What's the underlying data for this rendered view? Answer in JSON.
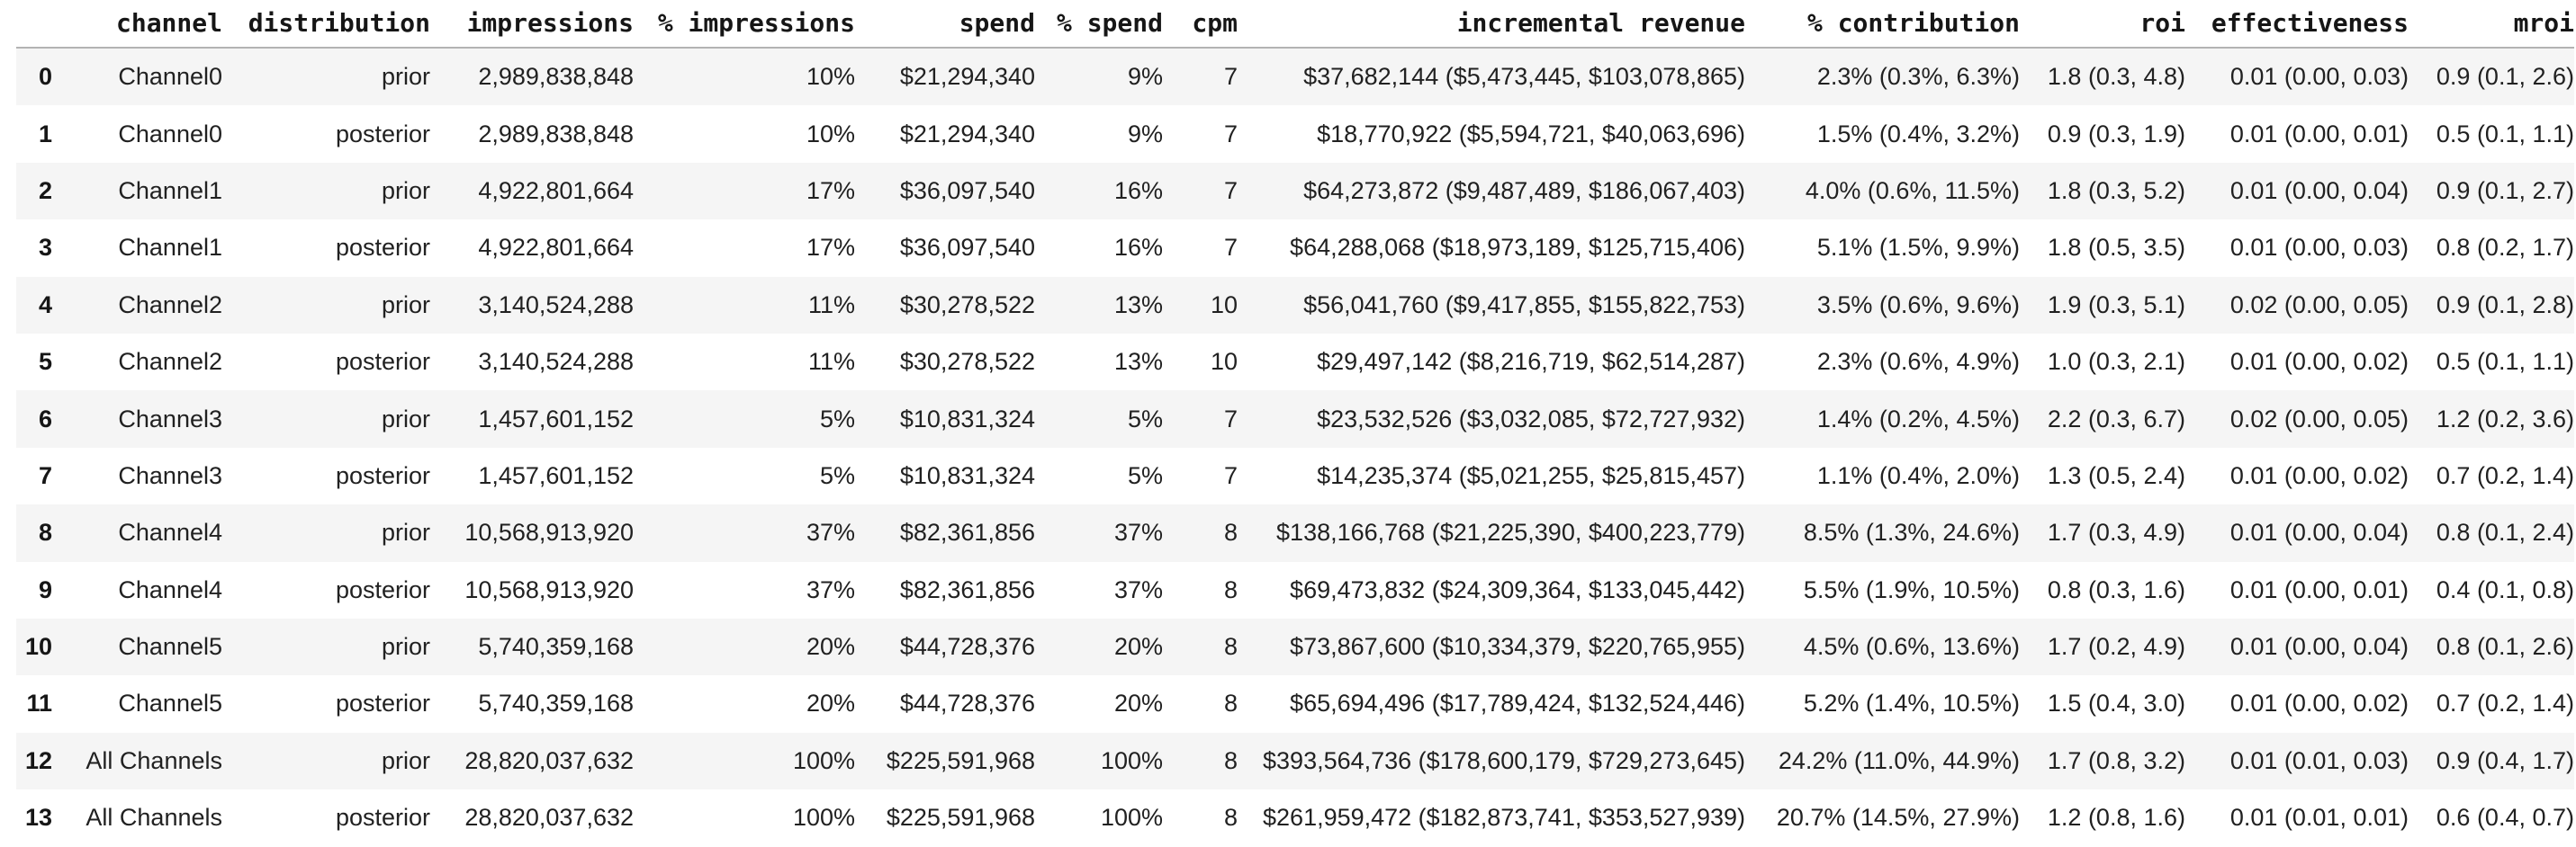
{
  "colors": {
    "background": "#ffffff",
    "row_stripe": "#f5f5f5",
    "header_border": "#b3b3b3",
    "header_text": "#161616",
    "body_text": "#212121"
  },
  "table": {
    "columns": [
      "",
      "channel",
      "distribution",
      "impressions",
      "% impressions",
      "spend",
      "% spend",
      "cpm",
      "incremental revenue",
      "% contribution",
      "roi",
      "effectiveness",
      "mroi"
    ],
    "rows": [
      [
        "0",
        "Channel0",
        "prior",
        "2,989,838,848",
        "10%",
        "$21,294,340",
        "9%",
        "7",
        "$37,682,144 ($5,473,445, $103,078,865)",
        "2.3% (0.3%, 6.3%)",
        "1.8 (0.3, 4.8)",
        "0.01 (0.00, 0.03)",
        "0.9 (0.1, 2.6)"
      ],
      [
        "1",
        "Channel0",
        "posterior",
        "2,989,838,848",
        "10%",
        "$21,294,340",
        "9%",
        "7",
        "$18,770,922 ($5,594,721, $40,063,696)",
        "1.5% (0.4%, 3.2%)",
        "0.9 (0.3, 1.9)",
        "0.01 (0.00, 0.01)",
        "0.5 (0.1, 1.1)"
      ],
      [
        "2",
        "Channel1",
        "prior",
        "4,922,801,664",
        "17%",
        "$36,097,540",
        "16%",
        "7",
        "$64,273,872 ($9,487,489, $186,067,403)",
        "4.0% (0.6%, 11.5%)",
        "1.8 (0.3, 5.2)",
        "0.01 (0.00, 0.04)",
        "0.9 (0.1, 2.7)"
      ],
      [
        "3",
        "Channel1",
        "posterior",
        "4,922,801,664",
        "17%",
        "$36,097,540",
        "16%",
        "7",
        "$64,288,068 ($18,973,189, $125,715,406)",
        "5.1% (1.5%, 9.9%)",
        "1.8 (0.5, 3.5)",
        "0.01 (0.00, 0.03)",
        "0.8 (0.2, 1.7)"
      ],
      [
        "4",
        "Channel2",
        "prior",
        "3,140,524,288",
        "11%",
        "$30,278,522",
        "13%",
        "10",
        "$56,041,760 ($9,417,855, $155,822,753)",
        "3.5% (0.6%, 9.6%)",
        "1.9 (0.3, 5.1)",
        "0.02 (0.00, 0.05)",
        "0.9 (0.1, 2.8)"
      ],
      [
        "5",
        "Channel2",
        "posterior",
        "3,140,524,288",
        "11%",
        "$30,278,522",
        "13%",
        "10",
        "$29,497,142 ($8,216,719, $62,514,287)",
        "2.3% (0.6%, 4.9%)",
        "1.0 (0.3, 2.1)",
        "0.01 (0.00, 0.02)",
        "0.5 (0.1, 1.1)"
      ],
      [
        "6",
        "Channel3",
        "prior",
        "1,457,601,152",
        "5%",
        "$10,831,324",
        "5%",
        "7",
        "$23,532,526 ($3,032,085, $72,727,932)",
        "1.4% (0.2%, 4.5%)",
        "2.2 (0.3, 6.7)",
        "0.02 (0.00, 0.05)",
        "1.2 (0.2, 3.6)"
      ],
      [
        "7",
        "Channel3",
        "posterior",
        "1,457,601,152",
        "5%",
        "$10,831,324",
        "5%",
        "7",
        "$14,235,374 ($5,021,255, $25,815,457)",
        "1.1% (0.4%, 2.0%)",
        "1.3 (0.5, 2.4)",
        "0.01 (0.00, 0.02)",
        "0.7 (0.2, 1.4)"
      ],
      [
        "8",
        "Channel4",
        "prior",
        "10,568,913,920",
        "37%",
        "$82,361,856",
        "37%",
        "8",
        "$138,166,768 ($21,225,390, $400,223,779)",
        "8.5% (1.3%, 24.6%)",
        "1.7 (0.3, 4.9)",
        "0.01 (0.00, 0.04)",
        "0.8 (0.1, 2.4)"
      ],
      [
        "9",
        "Channel4",
        "posterior",
        "10,568,913,920",
        "37%",
        "$82,361,856",
        "37%",
        "8",
        "$69,473,832 ($24,309,364, $133,045,442)",
        "5.5% (1.9%, 10.5%)",
        "0.8 (0.3, 1.6)",
        "0.01 (0.00, 0.01)",
        "0.4 (0.1, 0.8)"
      ],
      [
        "10",
        "Channel5",
        "prior",
        "5,740,359,168",
        "20%",
        "$44,728,376",
        "20%",
        "8",
        "$73,867,600 ($10,334,379, $220,765,955)",
        "4.5% (0.6%, 13.6%)",
        "1.7 (0.2, 4.9)",
        "0.01 (0.00, 0.04)",
        "0.8 (0.1, 2.6)"
      ],
      [
        "11",
        "Channel5",
        "posterior",
        "5,740,359,168",
        "20%",
        "$44,728,376",
        "20%",
        "8",
        "$65,694,496 ($17,789,424, $132,524,446)",
        "5.2% (1.4%, 10.5%)",
        "1.5 (0.4, 3.0)",
        "0.01 (0.00, 0.02)",
        "0.7 (0.2, 1.4)"
      ],
      [
        "12",
        "All Channels",
        "prior",
        "28,820,037,632",
        "100%",
        "$225,591,968",
        "100%",
        "8",
        "$393,564,736 ($178,600,179, $729,273,645)",
        "24.2% (11.0%, 44.9%)",
        "1.7 (0.8, 3.2)",
        "0.01 (0.01, 0.03)",
        "0.9 (0.4, 1.7)"
      ],
      [
        "13",
        "All Channels",
        "posterior",
        "28,820,037,632",
        "100%",
        "$225,591,968",
        "100%",
        "8",
        "$261,959,472 ($182,873,741, $353,527,939)",
        "20.7% (14.5%, 27.9%)",
        "1.2 (0.8, 1.6)",
        "0.01 (0.01, 0.01)",
        "0.6 (0.4, 0.7)"
      ]
    ]
  }
}
